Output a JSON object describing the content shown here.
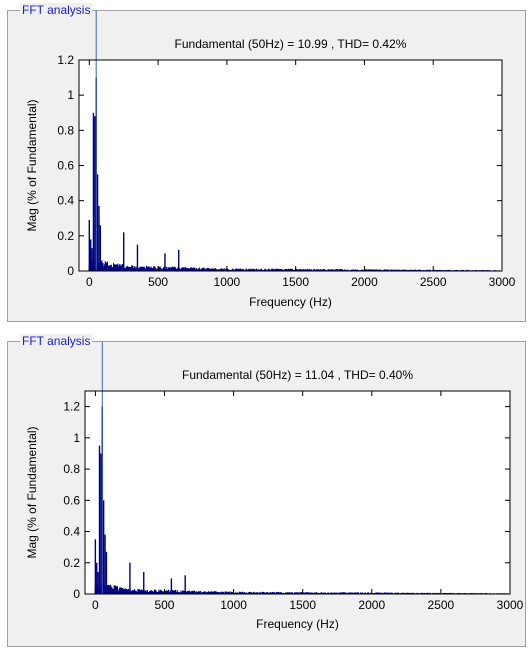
{
  "panels": [
    {
      "title": "FFT analysis"
    },
    {
      "title": "FFT analysis"
    }
  ],
  "colors": {
    "bars": "#00007f",
    "cursor": "#4060c0",
    "panel_bg": "#f0f0f0",
    "plot_bg": "#ffffff"
  },
  "chart_data": [
    {
      "type": "bar",
      "title": "Fundamental (50Hz) = 10.99 , THD= 0.42%",
      "xlabel": "Frequency (Hz)",
      "ylabel": "Mag (% of Fundamental)",
      "xlim": [
        -75,
        3000
      ],
      "ylim": [
        0,
        1.2
      ],
      "xticks": [
        0,
        500,
        1000,
        1500,
        2000,
        2500,
        3000
      ],
      "yticks": [
        0,
        0.2,
        0.4,
        0.6,
        0.8,
        1,
        1.2
      ],
      "xtick_labels": [
        "0",
        "500",
        "1000",
        "1500",
        "2000",
        "2500",
        "3000"
      ],
      "ytick_labels": [
        "0",
        "0.2",
        "0.4",
        "0.6",
        "0.8",
        "1",
        "1.2"
      ],
      "grid": false,
      "cursor_x": 50,
      "peaks": [
        {
          "x": 0,
          "y": 0.29
        },
        {
          "x": 10,
          "y": 0.18
        },
        {
          "x": 20,
          "y": 0.13
        },
        {
          "x": 30,
          "y": 0.9
        },
        {
          "x": 40,
          "y": 0.88
        },
        {
          "x": 50,
          "y": 1.1
        },
        {
          "x": 60,
          "y": 0.55
        },
        {
          "x": 70,
          "y": 0.37
        },
        {
          "x": 80,
          "y": 0.26
        },
        {
          "x": 250,
          "y": 0.22
        },
        {
          "x": 350,
          "y": 0.15
        },
        {
          "x": 550,
          "y": 0.1
        },
        {
          "x": 650,
          "y": 0.12
        }
      ]
    },
    {
      "type": "bar",
      "title": "Fundamental (50Hz) = 11.04 , THD= 0.40%",
      "xlabel": "Frequency (Hz)",
      "ylabel": "Mag (% of Fundamental)",
      "xlim": [
        -75,
        3000
      ],
      "ylim": [
        0,
        1.3
      ],
      "xticks": [
        0,
        500,
        1000,
        1500,
        2000,
        2500,
        3000
      ],
      "yticks": [
        0,
        0.2,
        0.4,
        0.6,
        0.8,
        1,
        1.2
      ],
      "xtick_labels": [
        "0",
        "500",
        "1000",
        "1500",
        "2000",
        "2500",
        "3000"
      ],
      "ytick_labels": [
        "0",
        "0.2",
        "0.4",
        "0.6",
        "0.8",
        "1",
        "1.2"
      ],
      "grid": false,
      "cursor_x": 50,
      "peaks": [
        {
          "x": 0,
          "y": 0.35
        },
        {
          "x": 10,
          "y": 0.2
        },
        {
          "x": 20,
          "y": 0.14
        },
        {
          "x": 30,
          "y": 0.95
        },
        {
          "x": 40,
          "y": 0.9
        },
        {
          "x": 50,
          "y": 1.2
        },
        {
          "x": 60,
          "y": 0.6
        },
        {
          "x": 70,
          "y": 0.38
        },
        {
          "x": 80,
          "y": 0.27
        },
        {
          "x": 250,
          "y": 0.2
        },
        {
          "x": 350,
          "y": 0.14
        },
        {
          "x": 550,
          "y": 0.1
        },
        {
          "x": 650,
          "y": 0.12
        }
      ]
    }
  ]
}
